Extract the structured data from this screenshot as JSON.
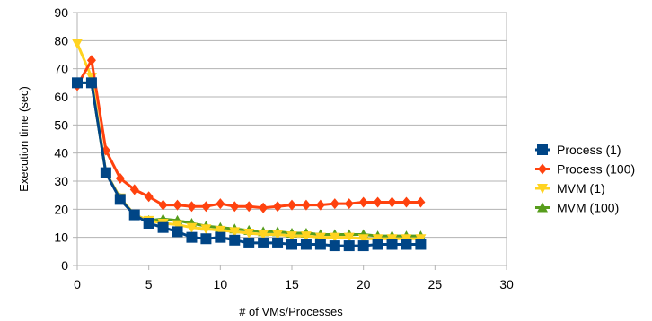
{
  "chart_data": {
    "type": "line",
    "title": "",
    "xlabel": "# of VMs/Processes",
    "ylabel": "Execution time (sec)",
    "xlim": [
      0,
      30
    ],
    "ylim": [
      0,
      90
    ],
    "xticks": [
      0,
      5,
      10,
      15,
      20,
      25,
      30
    ],
    "yticks": [
      0,
      10,
      20,
      30,
      40,
      50,
      60,
      70,
      80,
      90
    ],
    "grid": "horizontal",
    "legend_position": "right",
    "series": [
      {
        "name": "Process (1)",
        "color": "#004586",
        "marker": "square",
        "x": [
          0,
          1,
          2,
          3,
          4,
          5,
          6,
          7,
          8,
          9,
          10,
          11,
          12,
          13,
          14,
          15,
          16,
          17,
          18,
          19,
          20,
          21,
          22,
          23,
          24
        ],
        "y": [
          65,
          65,
          33,
          23.5,
          18,
          15,
          13.5,
          12,
          10,
          9.5,
          10,
          9,
          8,
          8,
          8,
          7.5,
          7.5,
          7.5,
          7,
          7,
          7,
          7.5,
          7.5,
          7.5,
          7.5
        ]
      },
      {
        "name": "Process (100)",
        "color": "#ff420e",
        "marker": "diamond",
        "x": [
          0,
          1,
          2,
          3,
          4,
          5,
          6,
          7,
          8,
          9,
          10,
          11,
          12,
          13,
          14,
          15,
          16,
          17,
          18,
          19,
          20,
          21,
          22,
          23,
          24
        ],
        "y": [
          64,
          73,
          41,
          31,
          27,
          24.5,
          21.5,
          21.5,
          21,
          21,
          22,
          21,
          21,
          20.5,
          21,
          21.5,
          21.5,
          21.5,
          22,
          22,
          22.5,
          22.5,
          22.5,
          22.5,
          22.5
        ]
      },
      {
        "name": "MVM (1)",
        "color": "#ffd320",
        "marker": "triangle-down",
        "x": [
          0,
          1,
          2,
          3,
          4,
          5,
          6,
          7,
          8,
          9,
          10,
          11,
          12,
          13,
          14,
          15,
          16,
          17,
          18,
          19,
          20,
          21,
          22,
          23,
          24
        ],
        "y": [
          79,
          67,
          33,
          24,
          18,
          16,
          15,
          14.5,
          13.5,
          13,
          12.5,
          12,
          11.5,
          11,
          11,
          10.5,
          10.5,
          10,
          10,
          10,
          9.5,
          9.5,
          9.5,
          9.5,
          9.5
        ]
      },
      {
        "name": "MVM (100)",
        "color": "#579d1c",
        "marker": "triangle-up",
        "x": [
          0,
          1,
          2,
          3,
          4,
          5,
          6,
          7,
          8,
          9,
          10,
          11,
          12,
          13,
          14,
          15,
          16,
          17,
          18,
          19,
          20,
          21,
          22,
          23,
          24
        ],
        "y": [
          65,
          65,
          33,
          24,
          18,
          16,
          16.5,
          16,
          15,
          14,
          13.5,
          13,
          12.5,
          12,
          12,
          11.5,
          11.5,
          11,
          11,
          11,
          11,
          10.5,
          10.5,
          10.5,
          10.5
        ]
      }
    ]
  }
}
